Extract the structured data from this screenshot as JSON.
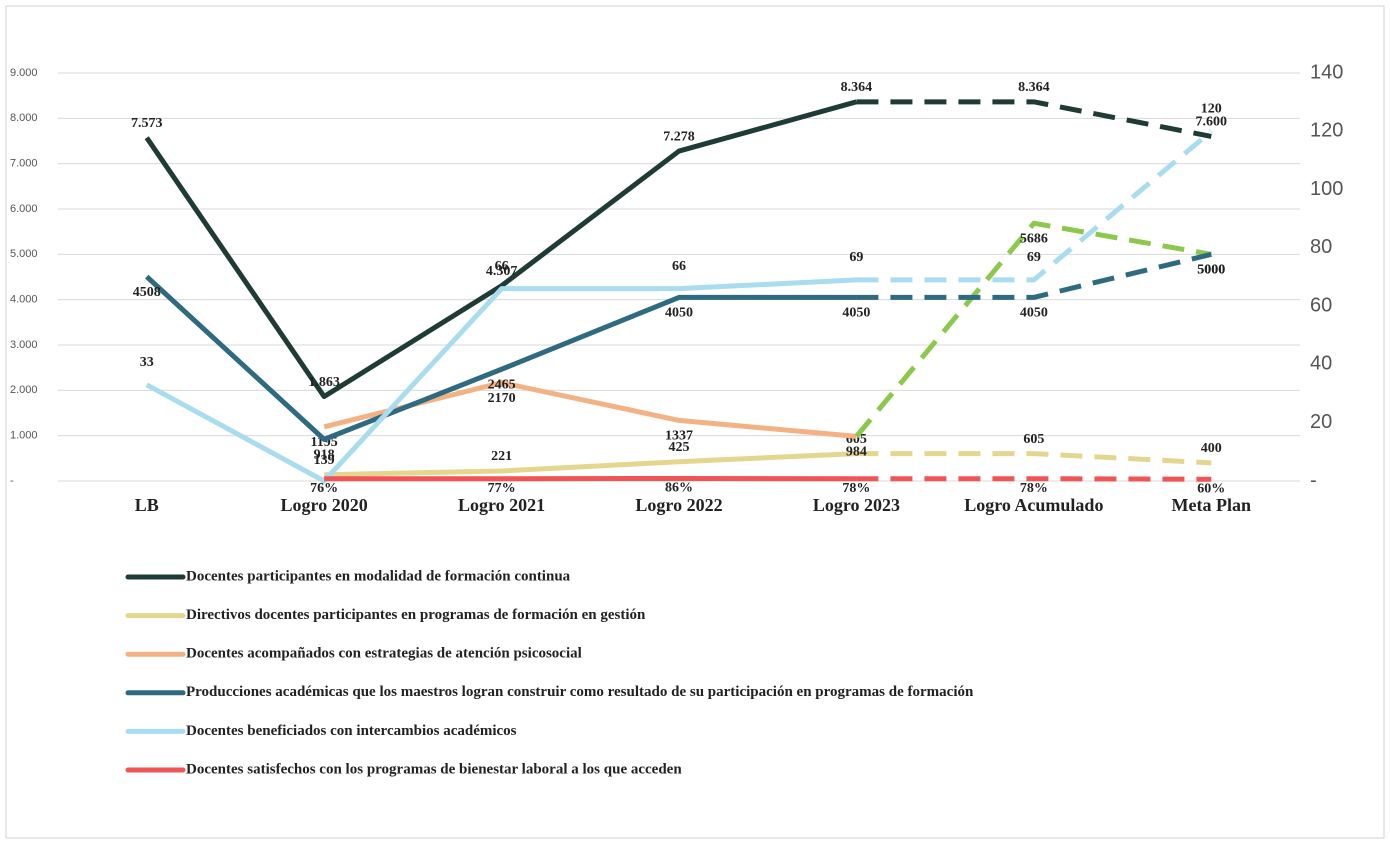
{
  "chart_data": {
    "type": "line",
    "categories": [
      "LB",
      "Logro 2020",
      "Logro 2021",
      "Logro 2022",
      "Logro 2023",
      "Logro Acumulado",
      "Meta Plan"
    ],
    "ylim": [
      0,
      9000
    ],
    "yticks": [
      {
        "value": 0,
        "label": "-"
      },
      {
        "value": 1000,
        "label": "1.000"
      },
      {
        "value": 2000,
        "label": "2.000"
      },
      {
        "value": 3000,
        "label": "3.000"
      },
      {
        "value": 4000,
        "label": "4.000"
      },
      {
        "value": 5000,
        "label": "5.000"
      },
      {
        "value": 6000,
        "label": "6.000"
      },
      {
        "value": 7000,
        "label": "7.000"
      },
      {
        "value": 8000,
        "label": "8.000"
      },
      {
        "value": 9000,
        "label": "9.000"
      }
    ],
    "y2lim": [
      0,
      140
    ],
    "y2ticks": [
      {
        "value": 0,
        "label": "-"
      },
      20,
      40,
      60,
      80,
      100,
      120,
      140
    ],
    "grid": true,
    "dashed_from": 4,
    "series": [
      {
        "name": "Docentes participantes en modalidad de formación continua",
        "color": "#1f3b35",
        "values": [
          7573,
          1863,
          4307,
          7278,
          8364,
          8364,
          7600
        ],
        "value_labels": [
          "7.573",
          "1.863",
          "4.307",
          "7.278",
          "8.364",
          "8.364",
          "7.600"
        ]
      },
      {
        "name": "Directivos docentes participantes en programas de formación en gestión",
        "color": "#e5d68f",
        "values": [
          null,
          139,
          221,
          425,
          605,
          605,
          400
        ],
        "value_labels": [
          null,
          "139",
          "221",
          "425",
          "605",
          "605",
          "400"
        ]
      },
      {
        "name": "Docentes acompañados con estrategias de atención psicosocial",
        "color": "#f4b183",
        "projection_color": "#8cc84b",
        "values": [
          null,
          1195,
          2170,
          1337,
          984,
          5686,
          5000
        ],
        "value_labels": [
          null,
          "1195",
          "2170",
          "1337",
          "984",
          "5686",
          "5000"
        ]
      },
      {
        "name": "Producciones académicas que los maestros logran construir como resultado de su participación en programas de formación",
        "color": "#2e6b80",
        "values": [
          4508,
          918,
          2465,
          4050,
          4050,
          4050,
          5000
        ],
        "value_labels": [
          "4508",
          "918",
          "2465",
          "4050",
          "4050",
          "4050",
          "5000"
        ]
      },
      {
        "name": "Docentes beneficiados con intercambios académicos",
        "color": "#a9dcef",
        "axis": "y2",
        "values": [
          33,
          0,
          66,
          66,
          69,
          69,
          120
        ],
        "value_labels": [
          "33",
          null,
          "66",
          "66",
          "69",
          "69",
          "120"
        ]
      },
      {
        "name": "Docentes satisfechos con los programas de bienestar laboral a los que acceden",
        "color": "#f05454",
        "axis": "y2",
        "values": [
          null,
          0.76,
          0.77,
          0.86,
          0.78,
          0.78,
          0.6
        ],
        "value_labels": [
          null,
          "76%",
          "77%",
          "86%",
          "78%",
          "78%",
          "60%"
        ]
      }
    ]
  }
}
